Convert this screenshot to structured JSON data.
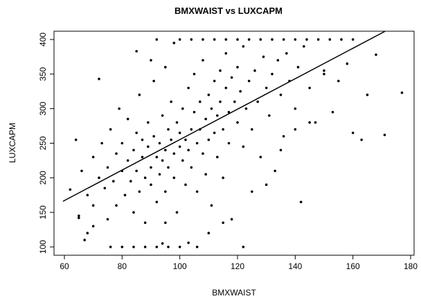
{
  "chart_data": {
    "type": "scatter",
    "title": "BMXWAIST vs LUXCAPM",
    "x_label": "BMXWAIST",
    "y_label": "LUXCAPM",
    "xlim": [
      56.4,
      181.2
    ],
    "ylim": [
      88,
      412
    ],
    "xticks": [
      60,
      80,
      100,
      120,
      140,
      160,
      180
    ],
    "yticks": [
      100,
      150,
      200,
      250,
      300,
      350,
      400
    ],
    "color": "#000000",
    "x": [
      62,
      64,
      65,
      66,
      68,
      68,
      70,
      70,
      72,
      72,
      73,
      74,
      75,
      75,
      76,
      77,
      78,
      78,
      79,
      80,
      80,
      81,
      82,
      82,
      83,
      84,
      84,
      85,
      85,
      86,
      86,
      87,
      87,
      88,
      88,
      89,
      89,
      90,
      90,
      91,
      91,
      92,
      92,
      93,
      93,
      94,
      94,
      95,
      95,
      96,
      96,
      97,
      97,
      98,
      98,
      99,
      99,
      100,
      100,
      101,
      101,
      102,
      102,
      103,
      103,
      104,
      104,
      105,
      105,
      106,
      106,
      107,
      107,
      108,
      108,
      109,
      109,
      110,
      110,
      111,
      111,
      112,
      112,
      113,
      113,
      114,
      114,
      115,
      115,
      116,
      116,
      117,
      117,
      118,
      118,
      119,
      120,
      120,
      121,
      122,
      122,
      123,
      124,
      125,
      126,
      127,
      128,
      129,
      130,
      131,
      132,
      133,
      134,
      135,
      136,
      137,
      138,
      140,
      141,
      143,
      145,
      147,
      150,
      153,
      155,
      158,
      160,
      163,
      165,
      168,
      171,
      177,
      76,
      80,
      84,
      88,
      92,
      96,
      100,
      106,
      122,
      103,
      94,
      92,
      100,
      104,
      108,
      112,
      116,
      120,
      124,
      128,
      132,
      136,
      140,
      144,
      148,
      152,
      156,
      160,
      65,
      67,
      70,
      95,
      110,
      115,
      125,
      130,
      135,
      140,
      145,
      150,
      85,
      90,
      95,
      98,
      142
    ],
    "y": [
      183,
      255,
      145,
      210,
      175,
      120,
      230,
      160,
      200,
      343,
      250,
      185,
      140,
      215,
      270,
      195,
      235,
      160,
      300,
      210,
      250,
      175,
      225,
      285,
      195,
      240,
      150,
      265,
      210,
      320,
      180,
      230,
      255,
      200,
      135,
      245,
      280,
      215,
      190,
      260,
      340,
      230,
      165,
      250,
      205,
      290,
      225,
      240,
      180,
      270,
      215,
      255,
      310,
      235,
      200,
      280,
      150,
      245,
      265,
      225,
      300,
      255,
      190,
      330,
      240,
      270,
      215,
      295,
      350,
      250,
      180,
      310,
      270,
      235,
      370,
      285,
      205,
      320,
      255,
      300,
      160,
      340,
      265,
      290,
      230,
      355,
      310,
      270,
      200,
      330,
      380,
      295,
      250,
      345,
      140,
      310,
      280,
      360,
      325,
      245,
      390,
      300,
      340,
      270,
      355,
      310,
      230,
      375,
      330,
      290,
      350,
      210,
      370,
      320,
      260,
      380,
      340,
      300,
      360,
      390,
      330,
      280,
      355,
      295,
      340,
      365,
      265,
      255,
      320,
      378,
      262,
      323,
      100,
      100,
      100,
      100,
      100,
      100,
      100,
      100,
      100,
      106,
      105,
      400,
      400,
      400,
      400,
      400,
      400,
      400,
      400,
      400,
      400,
      400,
      400,
      400,
      400,
      400,
      400,
      400,
      142,
      110,
      130,
      135,
      120,
      135,
      180,
      190,
      240,
      270,
      280,
      350,
      383,
      370,
      360,
      395,
      165
    ],
    "fit_line": {
      "x": [
        59.5,
        171.2
      ],
      "y": [
        166,
        412
      ]
    }
  }
}
